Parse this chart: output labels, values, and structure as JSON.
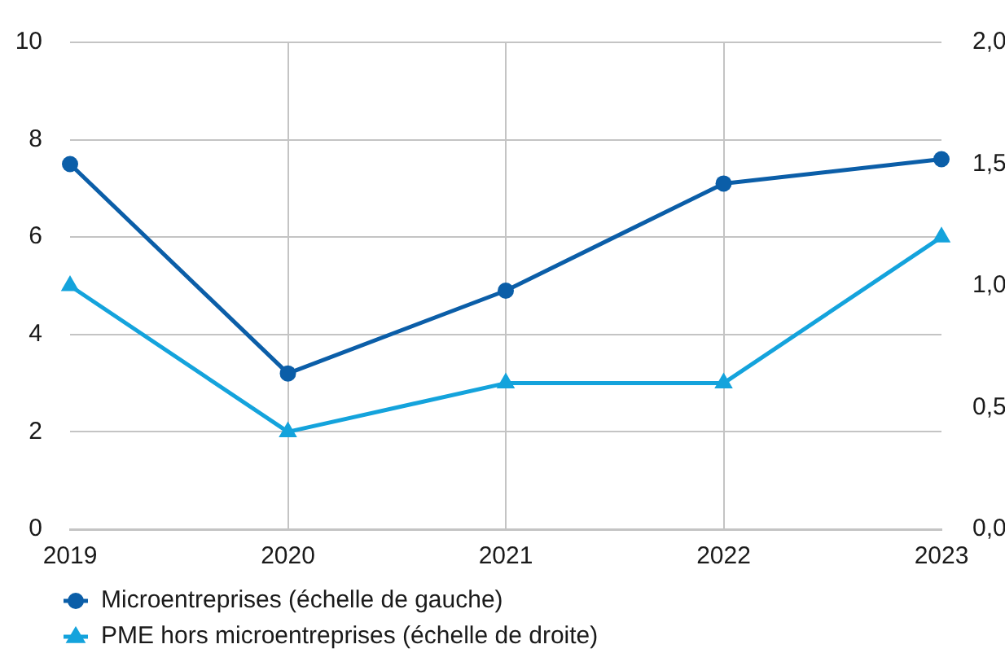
{
  "chart_data": {
    "type": "line",
    "categories": [
      "2019",
      "2020",
      "2021",
      "2022",
      "2023"
    ],
    "series": [
      {
        "name": "Microentreprises (échelle de gauche)",
        "color": "#0b5ea8",
        "values": [
          7.5,
          3.2,
          4.9,
          7.1,
          7.6
        ],
        "marker": "circle"
      },
      {
        "name": "PME hors microentreprises (échelle de droite)",
        "color": "#14a3dc",
        "values": [
          1.0,
          0.4,
          0.6,
          0.6,
          1.2
        ],
        "marker": "triangle",
        "axis": "y2"
      }
    ],
    "ylim": [
      0,
      10
    ],
    "yticks": [
      0,
      2,
      4,
      6,
      8,
      10
    ],
    "y2lim": [
      0,
      2
    ],
    "y2ticks": [
      {
        "value": 0,
        "label": "0,0"
      },
      {
        "value": 0.5,
        "label": "0,5"
      },
      {
        "value": 1,
        "label": "1,0"
      },
      {
        "value": 1.5,
        "label": "1,5"
      },
      {
        "value": 2,
        "label": "2,0"
      }
    ],
    "grid": true,
    "legend": "bottom left",
    "line_style": "solid"
  }
}
